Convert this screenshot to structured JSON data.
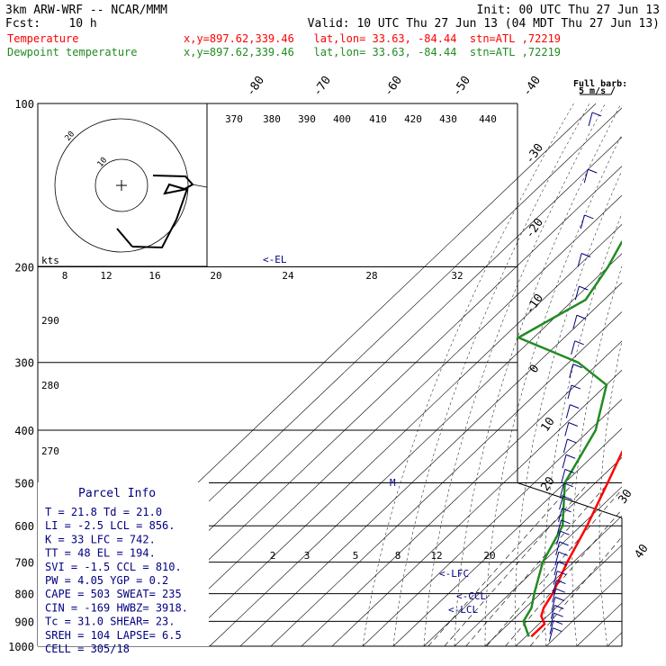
{
  "header": {
    "line1_left": "3km ARW-WRF -- NCAR/MMM",
    "line1_right": "Init: 00 UTC Thu 27 Jun 13",
    "line2_left": "Fcst:    10 h",
    "line2_right": "Valid: 10 UTC Thu 27 Jun 13 (04 MDT Thu 27 Jun 13)",
    "temp_label": "Temperature",
    "temp_info": "x,y=897.62,339.46   lat,lon= 33.63, -84.44  stn=ATL ,72219",
    "dew_label": "Dewpoint temperature",
    "dew_info": "x,y=897.62,339.46   lat,lon= 33.63, -84.44  stn=ATL ,72219"
  },
  "colors": {
    "temperature": "#ff0000",
    "dewpoint": "#228b22",
    "text": "#000080",
    "grid": "#000000"
  },
  "chart_data": {
    "type": "line",
    "title": "",
    "y_axis": {
      "label": "",
      "scale": "log-pressure",
      "ylim": [
        1000,
        100
      ],
      "ticks": [
        100,
        200,
        300,
        400,
        500,
        600,
        700,
        800,
        900,
        1000
      ]
    },
    "isotherm_labels": [
      "-80",
      "-70",
      "-60",
      "-50",
      "-40",
      "-30",
      "-20",
      "-10",
      "0",
      "10",
      "20",
      "30",
      "40"
    ],
    "series": [
      {
        "name": "Temperature",
        "points": [
          [
            100,
            -64
          ],
          [
            150,
            -62
          ],
          [
            170,
            -63
          ],
          [
            185,
            -59
          ],
          [
            200,
            -53
          ],
          [
            250,
            -41
          ],
          [
            300,
            -31
          ],
          [
            400,
            -16
          ],
          [
            500,
            -6
          ],
          [
            600,
            2
          ],
          [
            700,
            8
          ],
          [
            800,
            14
          ],
          [
            850,
            16
          ],
          [
            880,
            18
          ],
          [
            910,
            21.8
          ],
          [
            960,
            21.8
          ]
        ]
      },
      {
        "name": "Dewpoint temperature",
        "points": [
          [
            100,
            -73
          ],
          [
            150,
            -78
          ],
          [
            180,
            -84
          ],
          [
            200,
            -80
          ],
          [
            230,
            -76
          ],
          [
            270,
            -85
          ],
          [
            300,
            -57
          ],
          [
            330,
            -40
          ],
          [
            400,
            -28
          ],
          [
            500,
            -20
          ],
          [
            600,
            -6
          ],
          [
            700,
            0
          ],
          [
            800,
            8
          ],
          [
            850,
            12
          ],
          [
            900,
            14
          ],
          [
            960,
            21
          ]
        ]
      }
    ],
    "markers": [
      "<-EL",
      "<-LFC",
      "<-CCL",
      "<-LCL",
      "M"
    ],
    "wind_barbs_label": "Full barb:",
    "wind_barbs_sublabel": "5 m/s",
    "inset": {
      "theta_labels": [
        "370",
        "380",
        "390",
        "400",
        "410",
        "420",
        "430",
        "440"
      ],
      "mixing_labels_upper": [
        "8",
        "12",
        "16",
        "20",
        "24",
        "28",
        "32"
      ],
      "theta_left_labels": [
        "290",
        "280",
        "270"
      ],
      "kts_label": "kts",
      "ring_labels": [
        "10",
        "20"
      ]
    },
    "mixing_ratio_labels": [
      "2",
      "3",
      "5",
      "8",
      "12",
      "20"
    ]
  },
  "parcel_info": {
    "title": "Parcel Info",
    "rows": [
      "T  =    21.8  Td =  21.0",
      "LI =    -2.5  LCL =  856.",
      "K  =      33  LFC =  742.",
      "TT =      48  EL  =  194.",
      "SVI =   -1.5  CCL =  810.",
      "PW =    4.05  YGP =   0.2",
      "CAPE =   503  SWEAT=  235",
      "CIN =   -169  HWBZ= 3918.",
      "Tc =    31.0  SHEAR=  23.",
      "SREH =   104  LAPSE=  6.5",
      "CELL = 305/18"
    ]
  }
}
